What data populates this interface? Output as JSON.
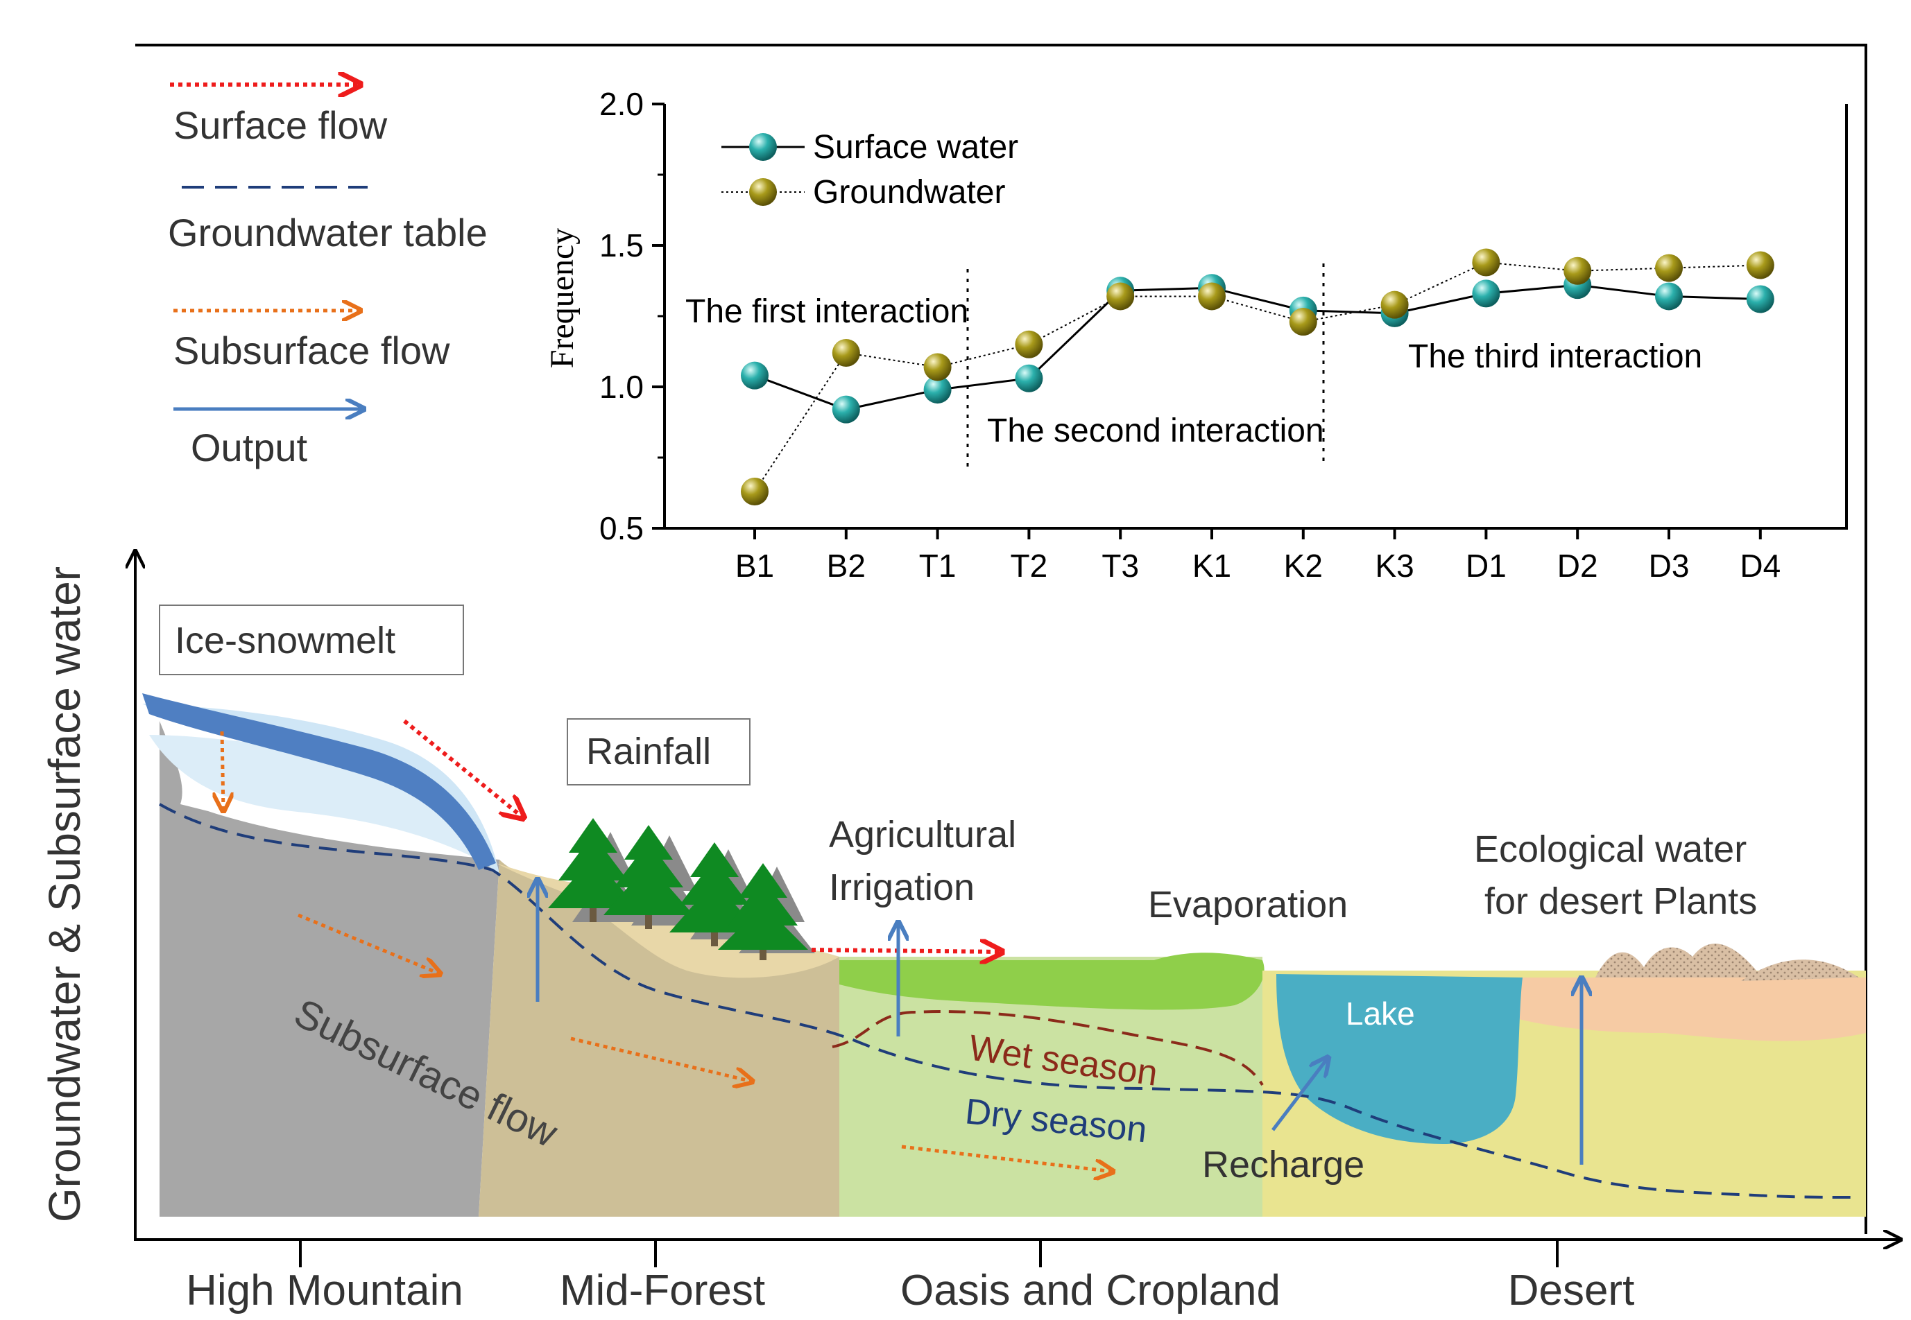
{
  "legend": {
    "surface_flow": "Surface flow",
    "groundwater_table": "Groundwater table",
    "subsurface_flow": "Subsurface flow",
    "output": "Output"
  },
  "axes": {
    "y_label": "Groundwater & Subsurface water"
  },
  "zones": [
    "High Mountain",
    "Mid-Forest",
    "Oasis and Cropland",
    "Desert"
  ],
  "labels": {
    "ice_snowmelt": "Ice-snowmelt",
    "rainfall": "Rainfall",
    "agri_line1": "Agricultural",
    "agri_line2": "Irrigation",
    "evaporation": "Evaporation",
    "eco_line1": "Ecological  water",
    "eco_line2": "for desert Plants",
    "lake": "Lake",
    "wet_season": "Wet season",
    "dry_season": "Dry season",
    "recharge": "Recharge",
    "subsurface_flow": "Subsurface flow"
  },
  "colors": {
    "surface_flow": "#ee1c1c",
    "groundwater_table": "#1f3d7a",
    "subsurface_flow": "#e8701a",
    "output": "#4a7ec0",
    "surface_water_marker": "#1e9a98",
    "groundwater_marker": "#9a8a10"
  },
  "chart_data": {
    "type": "line",
    "ylabel": "Frequency",
    "xlabel": "",
    "ylim": [
      0.5,
      2.0
    ],
    "yticks": [
      "0.5",
      "1.0",
      "1.5",
      "2.0"
    ],
    "categories": [
      "B1",
      "B2",
      "T1",
      "T2",
      "T3",
      "K1",
      "K2",
      "K3",
      "D1",
      "D2",
      "D3",
      "D4"
    ],
    "series": [
      {
        "name": "Surface water",
        "values": [
          1.04,
          0.92,
          0.99,
          1.03,
          1.34,
          1.35,
          1.27,
          1.26,
          1.33,
          1.36,
          1.32,
          1.31
        ]
      },
      {
        "name": "Groundwater",
        "values": [
          0.63,
          1.12,
          1.07,
          1.15,
          1.32,
          1.32,
          1.23,
          1.29,
          1.44,
          1.41,
          1.42,
          1.43
        ]
      }
    ],
    "annotations": [
      "The first interaction",
      "The second interaction",
      "The third interaction"
    ],
    "legend_position": "top-left",
    "grid": false
  }
}
